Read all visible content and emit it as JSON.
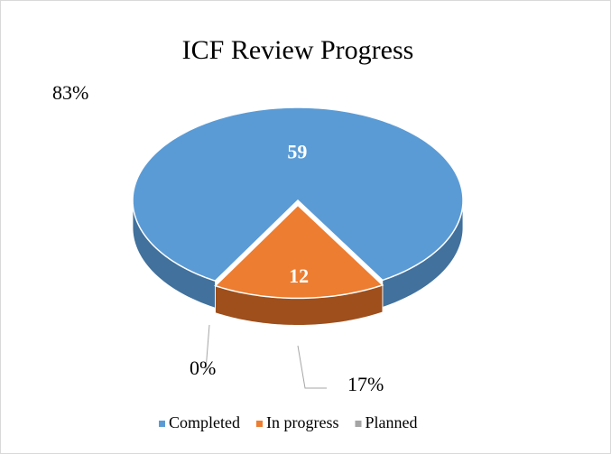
{
  "chart_data": {
    "type": "pie3d",
    "title": "ICF Review Progress",
    "categories": [
      "Completed",
      "In progress",
      "Planned"
    ],
    "values": [
      59,
      12,
      0
    ],
    "percentages": [
      83,
      17,
      0
    ],
    "percentage_labels": [
      "83%",
      "17%",
      "0%"
    ],
    "colors": [
      "#5b9bd5",
      "#ed7d31",
      "#a5a5a5"
    ],
    "side_colors": [
      "#41719c",
      "#9e4f1c",
      "#7c7c7c"
    ],
    "legend": "bottom"
  }
}
